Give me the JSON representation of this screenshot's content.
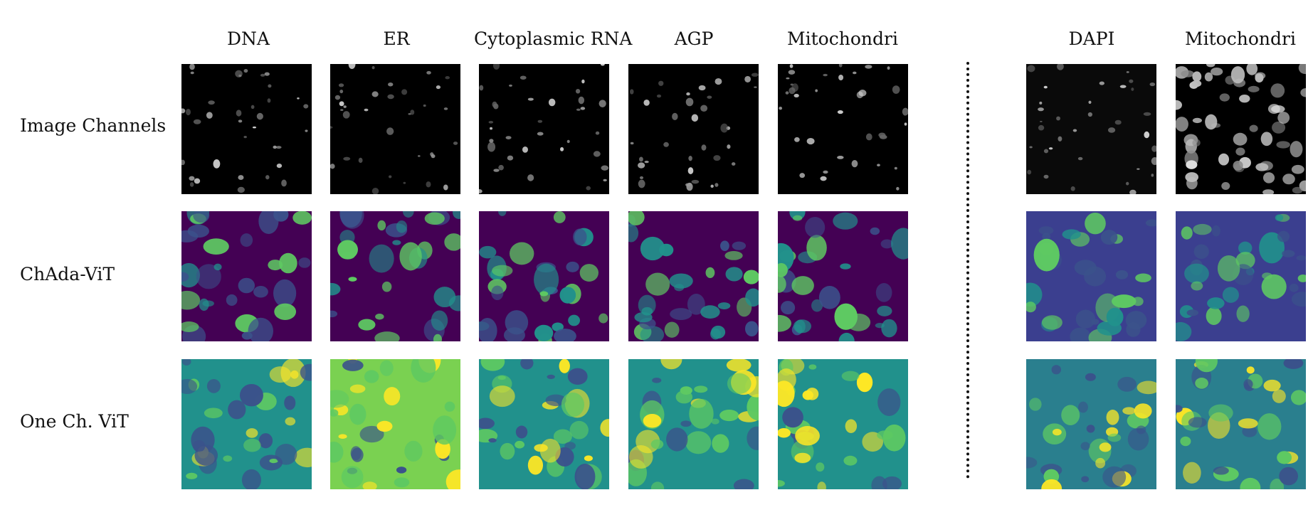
{
  "columns": [
    {
      "label": "DNA"
    },
    {
      "label": "ER"
    },
    {
      "label": "Cytoplasmic RNA"
    },
    {
      "label": "AGP"
    },
    {
      "label": "Mitochondri"
    },
    {
      "label": "DAPI"
    },
    {
      "label": "Mitochondri"
    }
  ],
  "rows": [
    {
      "label": "Image Channels",
      "colormap": "grayscale"
    },
    {
      "label": "ChAda-ViT",
      "colormap": "viridis"
    },
    {
      "label": "One Ch. ViT",
      "colormap": "viridis"
    }
  ],
  "colors": {
    "viridis_dark": "#440154",
    "viridis_blue": "#3b528b",
    "viridis_teal": "#21918c",
    "viridis_green": "#5ec962",
    "viridis_yellow": "#fde725",
    "black": "#000000"
  }
}
